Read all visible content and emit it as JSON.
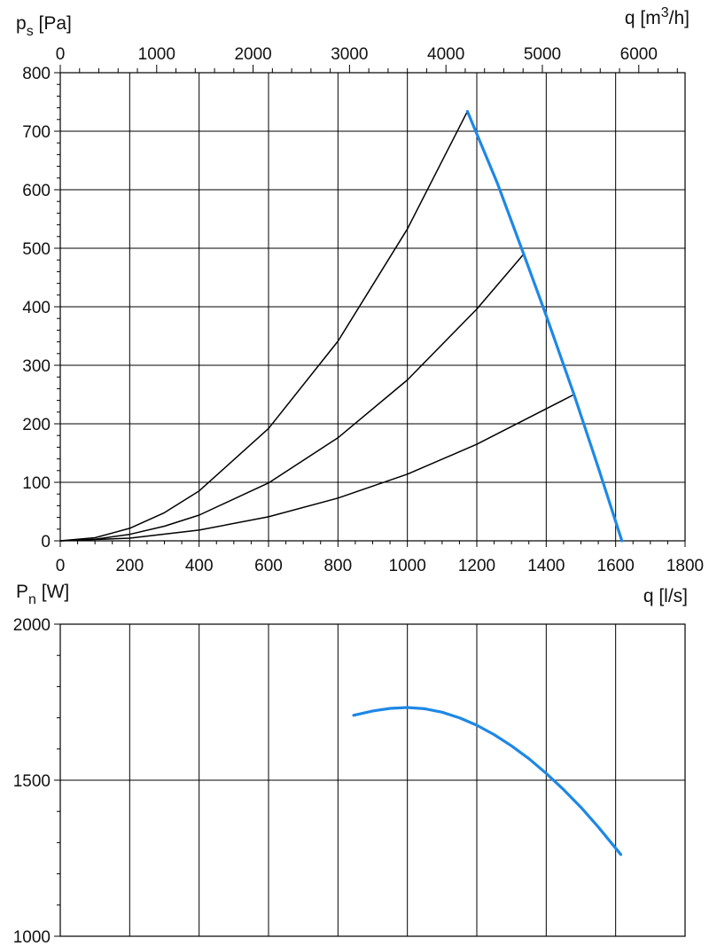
{
  "chart_data": [
    {
      "type": "line",
      "ylabel": {
        "main": "p",
        "sub": "s",
        "unit": " [Pa]"
      },
      "xlabel": "q [l/s]",
      "x2label": {
        "prefix": "q [m",
        "sup": "3",
        "suffix": "/h]"
      },
      "xlim": [
        0,
        1800
      ],
      "ylim": [
        0,
        800
      ],
      "x2lim": [
        0,
        6480
      ],
      "xticks": [
        0,
        200,
        400,
        600,
        800,
        1000,
        1200,
        1400,
        1600,
        1800
      ],
      "yticks": [
        0,
        100,
        200,
        300,
        400,
        500,
        600,
        700,
        800
      ],
      "x2ticks": [
        0,
        1000,
        2000,
        3000,
        4000,
        5000,
        6000
      ],
      "grid": true,
      "series": [
        {
          "color": "#000000",
          "x": [
            0,
            100,
            200,
            300,
            400,
            600,
            800,
            1000,
            1173
          ],
          "y": [
            0,
            5.3,
            21.3,
            48,
            85.3,
            192,
            341,
            533,
            734
          ]
        },
        {
          "color": "#000000",
          "x": [
            0,
            100,
            200,
            300,
            400,
            600,
            800,
            1000,
            1200,
            1335
          ],
          "y": [
            0,
            2.7,
            11,
            25,
            44,
            99,
            176,
            275,
            396,
            490
          ]
        },
        {
          "color": "#000000",
          "x": [
            0,
            200,
            400,
            600,
            800,
            1000,
            1200,
            1480
          ],
          "y": [
            0,
            4.6,
            18.3,
            41,
            73,
            114,
            165,
            250
          ]
        },
        {
          "color": "#1e88e5",
          "x": [
            1173,
            1260,
            1335,
            1400,
            1480,
            1550,
            1618
          ],
          "y": [
            734,
            610,
            490,
            385,
            250,
            125,
            0
          ]
        }
      ]
    },
    {
      "type": "line",
      "ylabel": {
        "main": "P",
        "sub": "n",
        "unit": " [W]"
      },
      "xlim": [
        0,
        1800
      ],
      "ylim": [
        1000,
        2000
      ],
      "yticks": [
        1000,
        1500,
        2000
      ],
      "grid": true,
      "series": [
        {
          "color": "#1e88e5",
          "x": [
            845,
            900,
            950,
            1000,
            1050,
            1100,
            1150,
            1200,
            1250,
            1300,
            1350,
            1400,
            1450,
            1500,
            1550,
            1615
          ],
          "y": [
            1708,
            1722,
            1730,
            1733,
            1729,
            1718,
            1700,
            1676,
            1646,
            1610,
            1569,
            1522,
            1470,
            1413,
            1350,
            1262
          ]
        }
      ]
    }
  ]
}
